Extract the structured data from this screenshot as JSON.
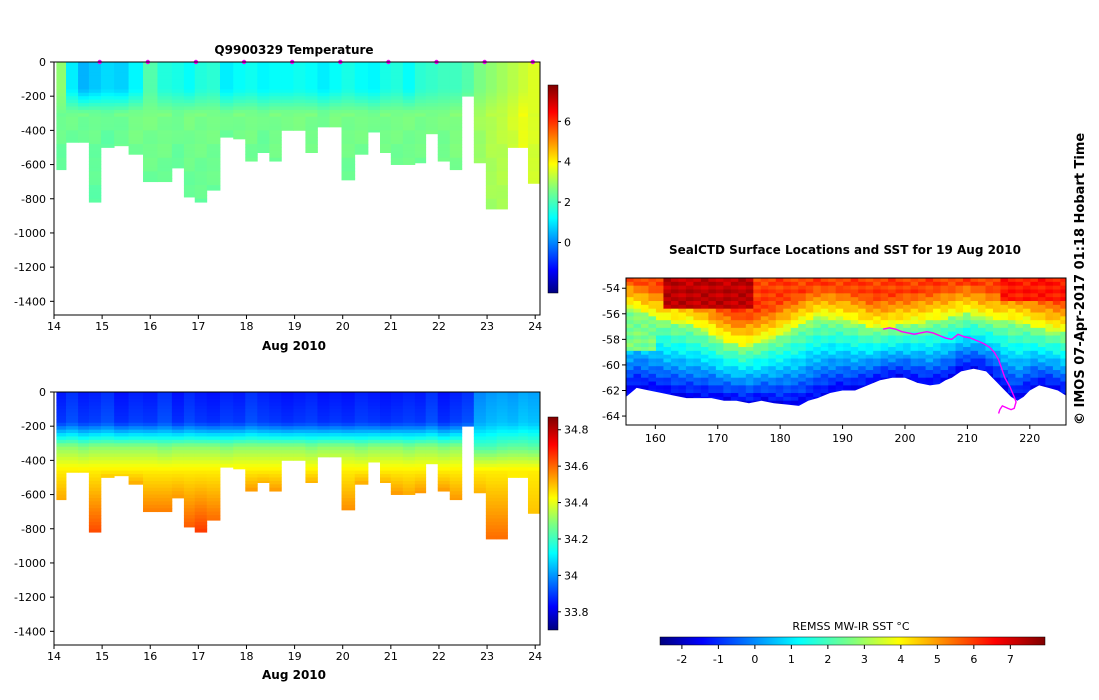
{
  "colors": {
    "jet": [
      "#00007f",
      "#0000ff",
      "#007fff",
      "#00ffff",
      "#7fff7f",
      "#ffff00",
      "#ff7f00",
      "#ff0000",
      "#7f0000"
    ],
    "track": "#ff00ff",
    "land": "#ffffff"
  },
  "chart_data": [
    {
      "type": "heatmap",
      "title": "Q9900329  Temperature",
      "xlabel": "Aug 2010",
      "x_ticks": [
        "14",
        "15",
        "16",
        "17",
        "18",
        "19",
        "20",
        "21",
        "22",
        "23",
        "24"
      ],
      "y_ticks": [
        "0",
        "-200",
        "-400",
        "-600",
        "-800",
        "-1000",
        "-1200",
        "-1400"
      ],
      "xlim": [
        14,
        24.1
      ],
      "ylim": [
        -1480,
        0
      ],
      "colorbar": {
        "ticks": [
          "0",
          "2",
          "4",
          "6"
        ],
        "range": [
          -2.5,
          7.8
        ]
      },
      "profiles": {
        "day": [
          14.1,
          14.4,
          14.6,
          14.85,
          15.1,
          15.4,
          15.7,
          16.0,
          16.3,
          16.6,
          16.8,
          17.05,
          17.3,
          17.6,
          17.85,
          18.1,
          18.35,
          18.6,
          18.85,
          19.1,
          19.35,
          19.6,
          19.85,
          20.1,
          20.4,
          20.65,
          20.9,
          21.1,
          21.4,
          21.6,
          21.85,
          22.1,
          22.35,
          22.6,
          22.85,
          23.1,
          23.3,
          23.55,
          23.75,
          23.95
        ],
        "max_depth": [
          630,
          470,
          470,
          820,
          500,
          490,
          540,
          700,
          700,
          620,
          790,
          820,
          750,
          440,
          450,
          580,
          530,
          580,
          400,
          400,
          530,
          380,
          380,
          690,
          540,
          410,
          530,
          600,
          600,
          590,
          420,
          580,
          630,
          200,
          590,
          860,
          860,
          500,
          500,
          710
        ],
        "surface_value": [
          2.8,
          1.2,
          0.6,
          0.8,
          1.0,
          0.9,
          1.3,
          2.2,
          1.7,
          1.6,
          1.4,
          1.7,
          1.8,
          1.2,
          1.4,
          1.5,
          1.3,
          1.4,
          1.4,
          1.5,
          1.4,
          1.2,
          1.4,
          1.6,
          1.4,
          1.3,
          1.6,
          1.7,
          1.4,
          1.8,
          1.9,
          2.0,
          2.0,
          2.2,
          2.6,
          2.8,
          3.0,
          3.2,
          3.4,
          3.6
        ],
        "deep_value": [
          2.5,
          2.5,
          2.5,
          2.5,
          2.4,
          2.5,
          2.6,
          2.6,
          2.6,
          2.5,
          2.6,
          2.6,
          2.6,
          2.5,
          2.6,
          2.6,
          2.5,
          2.6,
          2.6,
          2.6,
          2.6,
          2.5,
          2.6,
          2.6,
          2.6,
          2.5,
          2.6,
          2.6,
          2.6,
          2.6,
          2.6,
          2.6,
          2.7,
          2.9,
          3.0,
          3.2,
          3.3,
          3.5,
          3.8,
          3.6
        ]
      },
      "surface_markers": [
        14.95,
        15.95,
        16.95,
        17.95,
        18.95,
        19.95,
        20.95,
        21.95,
        22.95,
        23.95
      ]
    },
    {
      "type": "heatmap",
      "title": "",
      "xlabel": "Aug 2010",
      "x_ticks": [
        "14",
        "15",
        "16",
        "17",
        "18",
        "19",
        "20",
        "21",
        "22",
        "23",
        "24"
      ],
      "y_ticks": [
        "0",
        "-200",
        "-400",
        "-600",
        "-800",
        "-1000",
        "-1200",
        "-1400"
      ],
      "xlim": [
        14,
        24.1
      ],
      "ylim": [
        -1480,
        0
      ],
      "colorbar": {
        "ticks": [
          "33.8",
          "34",
          "34.2",
          "34.4",
          "34.6",
          "34.8"
        ],
        "range": [
          33.7,
          34.87
        ]
      },
      "profiles": {
        "surface_value": [
          33.87,
          33.9,
          33.87,
          33.88,
          33.9,
          33.86,
          33.88,
          33.87,
          33.9,
          33.86,
          33.89,
          33.87,
          33.86,
          33.88,
          33.87,
          33.9,
          33.88,
          33.87,
          33.86,
          33.87,
          33.88,
          33.86,
          33.87,
          33.86,
          33.88,
          33.87,
          33.86,
          33.87,
          33.88,
          33.87,
          33.9,
          33.86,
          33.88,
          33.9,
          34.0,
          34.02,
          34.03,
          34.02,
          34.04,
          34.03
        ],
        "mid_value": [
          34.3,
          34.3,
          34.28,
          34.3,
          34.3,
          34.3,
          34.3,
          34.3,
          34.28,
          34.3,
          34.3,
          34.3,
          34.3,
          34.28,
          34.3,
          34.3,
          34.3,
          34.3,
          34.3,
          34.3,
          34.28,
          34.3,
          34.3,
          34.3,
          34.28,
          34.3,
          34.3,
          34.3,
          34.28,
          34.3,
          34.3,
          34.28,
          34.3,
          34.3,
          34.22,
          34.22,
          34.24,
          34.25,
          34.25,
          34.24
        ],
        "deep_value": [
          34.53,
          34.5,
          34.5,
          34.64,
          34.52,
          34.52,
          34.53,
          34.58,
          34.58,
          34.55,
          34.62,
          34.66,
          34.6,
          34.5,
          34.52,
          34.55,
          34.52,
          34.55,
          34.5,
          34.5,
          34.52,
          34.5,
          34.5,
          34.56,
          34.53,
          34.5,
          34.52,
          34.55,
          34.53,
          34.55,
          34.52,
          34.55,
          34.55,
          34.3,
          34.52,
          34.6,
          34.6,
          34.45,
          34.45,
          34.5
        ]
      }
    },
    {
      "type": "heatmap",
      "title": "SealCTD Surface Locations and SST for 19 Aug 2010",
      "x_ticks": [
        "160",
        "170",
        "180",
        "190",
        "200",
        "210",
        "220"
      ],
      "y_ticks": [
        "-54",
        "-56",
        "-58",
        "-60",
        "-62",
        "-64"
      ],
      "xlim": [
        155.3,
        225.8
      ],
      "ylim": [
        -64.7,
        -53.2
      ],
      "colorbar": {
        "label": "REMSS MW-IR SST °C",
        "ticks": [
          "-2",
          "-1",
          "0",
          "1",
          "2",
          "3",
          "4",
          "5",
          "6",
          "7"
        ],
        "range": [
          -2.6,
          7.95
        ]
      },
      "coast": {
        "lon": [
          155.3,
          157,
          159,
          161,
          163,
          165,
          167,
          169,
          171,
          173,
          175,
          177,
          179,
          181,
          183,
          184.5,
          186,
          188,
          190,
          192,
          194,
          196,
          198,
          200,
          202,
          204,
          205.5,
          206.5,
          207.5,
          209,
          211,
          213,
          215,
          217,
          218,
          219,
          220,
          221.5,
          223,
          224.5,
          225.8
        ],
        "lat": [
          -62.5,
          -61.8,
          -62.0,
          -62.2,
          -62.4,
          -62.6,
          -62.6,
          -62.6,
          -62.8,
          -62.8,
          -63.0,
          -62.8,
          -63.0,
          -63.1,
          -63.2,
          -62.8,
          -62.6,
          -62.2,
          -62.0,
          -62.0,
          -61.6,
          -61.2,
          -61.0,
          -61.0,
          -61.4,
          -61.6,
          -61.5,
          -61.2,
          -61.0,
          -60.5,
          -60.3,
          -60.5,
          -61.5,
          -62.5,
          -62.8,
          -62.5,
          -62.0,
          -61.6,
          -61.8,
          -62.0,
          -62.4
        ]
      },
      "front": {
        "lon": [
          155.3,
          158,
          160,
          162,
          165,
          168,
          171,
          174,
          177,
          180,
          183,
          186,
          189,
          192,
          195,
          198,
          201,
          204,
          207,
          210,
          213,
          216,
          219,
          222,
          225.8
        ],
        "lat": [
          -55.5,
          -56.0,
          -56.3,
          -56.6,
          -56.8,
          -57.3,
          -58.2,
          -58.6,
          -58.2,
          -57.6,
          -56.9,
          -56.3,
          -56.4,
          -56.7,
          -57.2,
          -57.0,
          -56.8,
          -56.6,
          -56.3,
          -56.0,
          -56.4,
          -56.6,
          -56.7,
          -57.2,
          -57.5
        ]
      },
      "track": {
        "lon": [
          196.5,
          197.5,
          198.5,
          199.5,
          200.5,
          201.5,
          202.5,
          203.5,
          204.5,
          205.5,
          206.5,
          207.5,
          208.5,
          209.5,
          210.5,
          211.5,
          212.5,
          213.5,
          214.3,
          215.0,
          215.5,
          216.0,
          216.8,
          217.5,
          217.8,
          217.5,
          217.0,
          216.5,
          215.6,
          215.2,
          215.0
        ],
        "lat": [
          -57.2,
          -57.1,
          -57.2,
          -57.4,
          -57.5,
          -57.6,
          -57.5,
          -57.4,
          -57.5,
          -57.7,
          -57.9,
          -58.0,
          -57.6,
          -57.8,
          -57.9,
          -58.1,
          -58.3,
          -58.6,
          -59.0,
          -59.6,
          -60.3,
          -61.0,
          -61.7,
          -62.5,
          -62.9,
          -63.4,
          -63.5,
          -63.4,
          -63.2,
          -63.5,
          -63.8
        ]
      }
    }
  ],
  "watermark": "© IMOS 07-Apr-2017 01:18 Hobart Time"
}
